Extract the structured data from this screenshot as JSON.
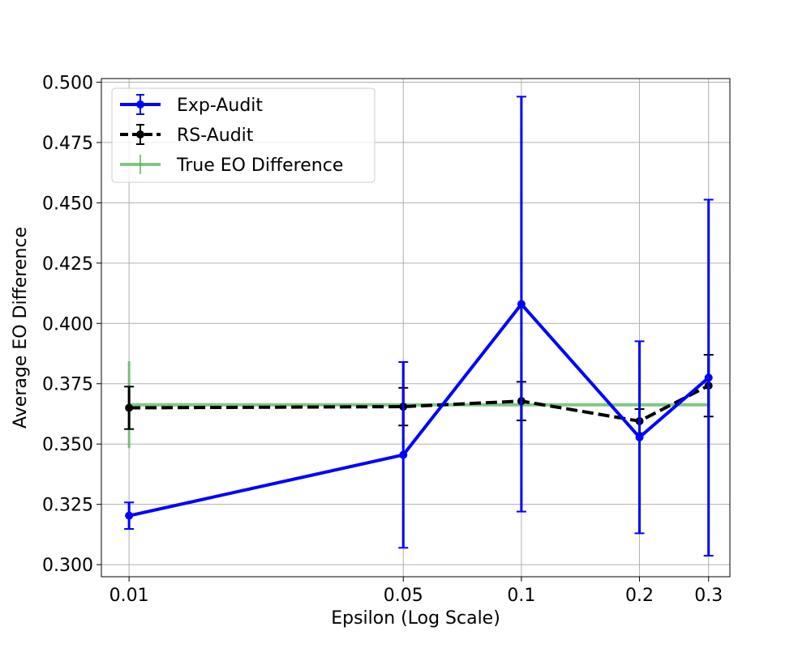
{
  "chart_data": {
    "type": "line",
    "title": "",
    "xlabel": "Epsilon (Log Scale)",
    "ylabel": "Average EO Difference",
    "xscale": "log",
    "xlim": [
      0.0085,
      0.34
    ],
    "ylim": [
      0.295,
      0.5015
    ],
    "x": [
      0.01,
      0.05,
      0.1,
      0.2,
      0.3
    ],
    "x_tick_labels": [
      "0.01",
      "0.05",
      "0.1",
      "0.2",
      "0.3"
    ],
    "y_ticks": [
      0.3,
      0.325,
      0.35,
      0.375,
      0.4,
      0.425,
      0.45,
      0.475,
      0.5
    ],
    "y_tick_labels": [
      "0.300",
      "0.325",
      "0.350",
      "0.375",
      "0.400",
      "0.425",
      "0.450",
      "0.475",
      "0.500"
    ],
    "grid": true,
    "legend_position": "top-left",
    "series": [
      {
        "name": "Exp-Audit",
        "color": "#0000ff",
        "line_style": "solid",
        "marker": "circle",
        "values": [
          0.3203,
          0.3455,
          0.408,
          0.3528,
          0.3775
        ],
        "errors": [
          0.0055,
          0.0385,
          0.086,
          0.0398,
          0.0738
        ]
      },
      {
        "name": "RS-Audit",
        "color": "#000000",
        "line_style": "dashed",
        "marker": "circle",
        "values": [
          0.365,
          0.3655,
          0.3678,
          0.3595,
          0.3742
        ],
        "errors": [
          0.0088,
          0.0078,
          0.008,
          0.005,
          0.0128
        ]
      },
      {
        "name": "True EO Difference",
        "color": "#4caf50",
        "line_style": "solid",
        "marker": "none",
        "values": [
          0.3663,
          0.3663,
          0.3663,
          0.3663,
          0.3663
        ],
        "errors": [
          0.018,
          0.018,
          0.018,
          0.018,
          0.018
        ]
      }
    ]
  }
}
